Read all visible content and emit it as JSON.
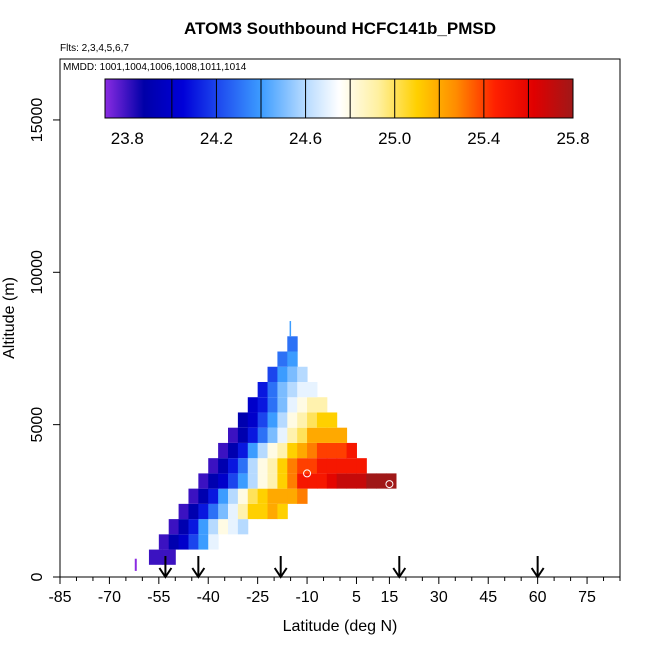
{
  "chart_data": {
    "type": "heatmap",
    "title": "ATOM3 Southbound HCFC141b_PMSD",
    "flights_note": "Flts: 2,3,4,5,6,7",
    "dates_note": "MMDD: 1001,1004,1006,1008,1011,1014",
    "xlabel": "Latitude (deg N)",
    "ylabel": "Altitude (m)",
    "xlim": [
      -85,
      85
    ],
    "ylim": [
      0,
      17000
    ],
    "x_ticks": [
      -85,
      -70,
      -55,
      -40,
      -25,
      -10,
      5,
      15,
      30,
      45,
      60,
      75
    ],
    "y_ticks": [
      0,
      5000,
      10000,
      15000
    ],
    "colorbar": {
      "min": 23.7,
      "max": 25.8,
      "ticks": [
        23.8,
        24.2,
        24.6,
        25.0,
        25.4,
        25.8
      ],
      "position": "top",
      "colors": [
        "#8a2be2",
        "#0000a8",
        "#0000d8",
        "#2050f0",
        "#3c9cff",
        "#aad4ff",
        "#ffffff",
        "#fff0a0",
        "#ffd000",
        "#ff8c00",
        "#ff2000",
        "#e00000",
        "#a01818"
      ]
    },
    "rows": [
      {
        "alt_bottom": 400,
        "alt_top": 900,
        "lat_start": -58,
        "lat_end": -50,
        "values": [
          23.8,
          23.8
        ]
      },
      {
        "alt_bottom": 900,
        "alt_top": 1400,
        "lat_start": -55,
        "lat_end": -37,
        "values": [
          23.8,
          23.9,
          24.0,
          24.2,
          24.4,
          24.7
        ]
      },
      {
        "alt_bottom": 1400,
        "alt_top": 1900,
        "lat_start": -52,
        "lat_end": -28,
        "values": [
          23.8,
          23.9,
          24.1,
          24.4,
          24.6,
          24.8,
          24.7,
          24.6
        ]
      },
      {
        "alt_bottom": 1900,
        "alt_top": 2400,
        "lat_start": -49,
        "lat_end": -16,
        "values": [
          23.8,
          23.9,
          24.1,
          24.3,
          24.5,
          24.7,
          24.9,
          25.1,
          25.1,
          25.2,
          25.1
        ]
      },
      {
        "alt_bottom": 2400,
        "alt_top": 2900,
        "lat_start": -46,
        "lat_end": -10,
        "values": [
          23.8,
          23.9,
          24.1,
          24.4,
          24.6,
          24.8,
          25.0,
          25.1,
          25.2,
          25.2,
          25.2,
          25.3
        ]
      },
      {
        "alt_bottom": 2900,
        "alt_top": 3400,
        "lat_start": -43,
        "lat_end": 17,
        "values": [
          23.8,
          23.9,
          24.0,
          24.2,
          24.4,
          24.6,
          24.8,
          24.9,
          25.1,
          25.3,
          25.5,
          25.5,
          25.5,
          25.6,
          25.7,
          25.7,
          25.7,
          25.8,
          25.8,
          25.8
        ]
      },
      {
        "alt_bottom": 3400,
        "alt_top": 3900,
        "lat_start": -40,
        "lat_end": 8,
        "values": [
          23.8,
          23.9,
          24.1,
          24.3,
          24.6,
          24.8,
          24.9,
          25.1,
          25.3,
          25.4,
          25.4,
          25.5,
          25.5,
          25.5,
          25.5,
          25.5
        ]
      },
      {
        "alt_bottom": 3900,
        "alt_top": 4400,
        "lat_start": -37,
        "lat_end": 5,
        "values": [
          23.8,
          23.9,
          24.1,
          24.4,
          24.6,
          24.8,
          24.9,
          25.1,
          25.2,
          25.3,
          25.4,
          25.4,
          25.4,
          25.5
        ]
      },
      {
        "alt_bottom": 4400,
        "alt_top": 4900,
        "lat_start": -34,
        "lat_end": 2,
        "values": [
          23.8,
          23.9,
          24.1,
          24.3,
          24.5,
          24.7,
          24.9,
          25.0,
          25.2,
          25.2,
          25.2,
          25.2
        ]
      },
      {
        "alt_bottom": 4900,
        "alt_top": 5400,
        "lat_start": -31,
        "lat_end": -1,
        "values": [
          23.9,
          24.0,
          24.2,
          24.4,
          24.6,
          24.8,
          24.9,
          25.0,
          25.1,
          25.1
        ]
      },
      {
        "alt_bottom": 5400,
        "alt_top": 5900,
        "lat_start": -28,
        "lat_end": -4,
        "values": [
          24.0,
          24.1,
          24.3,
          24.5,
          24.7,
          24.8,
          24.9,
          24.9
        ]
      },
      {
        "alt_bottom": 5900,
        "alt_top": 6400,
        "lat_start": -25,
        "lat_end": -7,
        "values": [
          24.1,
          24.3,
          24.5,
          24.6,
          24.7,
          24.7
        ]
      },
      {
        "alt_bottom": 6400,
        "alt_top": 6900,
        "lat_start": -22,
        "lat_end": -10,
        "values": [
          24.2,
          24.4,
          24.5,
          24.6
        ]
      },
      {
        "alt_bottom": 6900,
        "alt_top": 7400,
        "lat_start": -19,
        "lat_end": -13,
        "values": [
          24.3,
          24.4
        ]
      },
      {
        "alt_bottom": 7400,
        "alt_top": 7900,
        "lat_start": -16,
        "lat_end": -13,
        "values": [
          24.3
        ]
      },
      {
        "alt_bottom": 7900,
        "alt_top": 8400,
        "lat_start": -15.3,
        "lat_end": -15,
        "values": [
          24.4
        ]
      }
    ],
    "markers": [
      {
        "lat": -10,
        "alt": 3400
      },
      {
        "lat": 15,
        "alt": 3050
      }
    ],
    "flight_arrows_lat": [
      -53,
      -43,
      -18,
      18,
      60
    ],
    "tick_marks": [
      {
        "lat": -62,
        "alt_bottom": 200,
        "alt_top": 600,
        "color": "#8a2be2"
      }
    ]
  }
}
